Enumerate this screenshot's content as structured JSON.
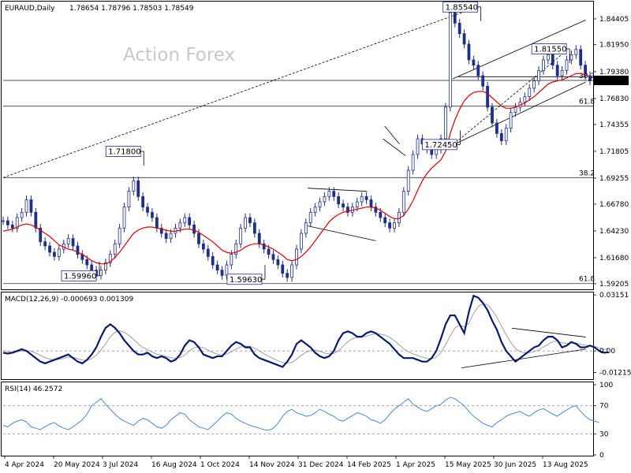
{
  "header": {
    "symbol": "EURAUD,Daily",
    "ohlc": "1.78654 1.78796 1.78503 1.78549"
  },
  "watermark": "Action Forex",
  "colors": {
    "candles": "#1f2f8a",
    "ma": "#e00000",
    "macd": "#0a1a6e",
    "signal": "#a0a0a0",
    "rsi": "#4a8ad8",
    "grid_line": "#888888"
  },
  "chart_data": [
    {
      "type": "candlestick",
      "panel": "price",
      "title": "EURAUD,Daily",
      "x_labels": [
        "4 Apr 2024",
        "20 May 2024",
        "3 Jul 2024",
        "16 Aug 2024",
        "1 Oct 2024",
        "14 Nov 2024",
        "31 Dec 2024",
        "14 Feb 2025",
        "1 Apr 2025",
        "15 May 2025",
        "30 Jun 2025",
        "13 Aug 2025"
      ],
      "y_ticks": [
        "1.84405",
        "1.81950",
        "1.79380",
        "1.76830",
        "1.74355",
        "1.71805",
        "1.69255",
        "1.66780",
        "1.64230",
        "1.61680",
        "1.59205"
      ],
      "ylim": [
        1.5875,
        1.859
      ],
      "last_price": "1.78549",
      "annotations": [
        {
          "text": "1.85540",
          "kind": "high"
        },
        {
          "text": "1.71800",
          "kind": "high"
        },
        {
          "text": "1.59960",
          "kind": "low"
        },
        {
          "text": "1.59630",
          "kind": "low"
        },
        {
          "text": "1.81550",
          "kind": "high"
        },
        {
          "text": "1.72450",
          "kind": "low"
        }
      ],
      "fib_levels": [
        {
          "label": "38.2",
          "value": 1.693
        },
        {
          "label": "61.8",
          "value": 1.5922
        },
        {
          "label": "61.8",
          "value": 1.761
        },
        {
          "label": "38.2",
          "value": 1.7855
        }
      ],
      "series": [
        {
          "name": "price",
          "values": [
            1.652,
            1.648,
            1.645,
            1.655,
            1.66,
            1.672,
            1.66,
            1.645,
            1.632,
            1.628,
            1.622,
            1.618,
            1.625,
            1.63,
            1.635,
            1.628,
            1.62,
            1.615,
            1.61,
            1.605,
            1.6,
            1.605,
            1.612,
            1.62,
            1.63,
            1.645,
            1.665,
            1.68,
            1.69,
            1.675,
            1.665,
            1.66,
            1.655,
            1.645,
            1.64,
            1.635,
            1.64,
            1.645,
            1.65,
            1.655,
            1.648,
            1.64,
            1.63,
            1.625,
            1.618,
            1.61,
            1.605,
            1.6,
            1.61,
            1.62,
            1.63,
            1.645,
            1.655,
            1.65,
            1.64,
            1.63,
            1.625,
            1.62,
            1.615,
            1.61,
            1.602,
            1.598,
            1.61,
            1.625,
            1.64,
            1.65,
            1.66,
            1.665,
            1.67,
            1.675,
            1.68,
            1.675,
            1.668,
            1.665,
            1.66,
            1.665,
            1.67,
            1.675,
            1.672,
            1.665,
            1.66,
            1.655,
            1.65,
            1.645,
            1.65,
            1.66,
            1.68,
            1.7,
            1.715,
            1.73,
            1.725,
            1.72,
            1.715,
            1.72,
            1.73,
            1.76,
            1.85,
            1.84,
            1.83,
            1.82,
            1.805,
            1.8,
            1.79,
            1.78,
            1.76,
            1.745,
            1.735,
            1.728,
            1.74,
            1.755,
            1.76,
            1.765,
            1.77,
            1.778,
            1.785,
            1.795,
            1.805,
            1.81,
            1.8,
            1.79,
            1.795,
            1.805,
            1.81,
            1.815,
            1.8,
            1.79,
            1.785
          ]
        },
        {
          "name": "MA",
          "values": [
            1.642,
            1.643,
            1.644,
            1.646,
            1.648,
            1.649,
            1.648,
            1.646,
            1.643,
            1.64,
            1.637,
            1.633,
            1.629,
            1.627,
            1.625,
            1.624,
            1.622,
            1.62,
            1.617,
            1.614,
            1.612,
            1.611,
            1.611,
            1.613,
            1.617,
            1.622,
            1.628,
            1.634,
            1.64,
            1.643,
            1.645,
            1.646,
            1.646,
            1.645,
            1.644,
            1.643,
            1.642,
            1.642,
            1.643,
            1.644,
            1.644,
            1.643,
            1.641,
            1.638,
            1.635,
            1.632,
            1.628,
            1.624,
            1.622,
            1.621,
            1.622,
            1.624,
            1.627,
            1.629,
            1.63,
            1.63,
            1.629,
            1.627,
            1.625,
            1.622,
            1.619,
            1.615,
            1.614,
            1.615,
            1.618,
            1.622,
            1.627,
            1.633,
            1.639,
            1.645,
            1.651,
            1.655,
            1.658,
            1.66,
            1.661,
            1.662,
            1.663,
            1.664,
            1.665,
            1.665,
            1.664,
            1.662,
            1.659,
            1.656,
            1.654,
            1.654,
            1.657,
            1.663,
            1.671,
            1.681,
            1.69,
            1.697,
            1.702,
            1.706,
            1.71,
            1.718,
            1.735,
            1.748,
            1.758,
            1.766,
            1.771,
            1.774,
            1.775,
            1.775,
            1.773,
            1.769,
            1.765,
            1.761,
            1.759,
            1.759,
            1.76,
            1.762,
            1.764,
            1.767,
            1.77,
            1.774,
            1.778,
            1.782,
            1.784,
            1.785,
            1.786,
            1.788,
            1.79,
            1.792,
            1.792,
            1.791,
            1.789
          ]
        }
      ]
    },
    {
      "type": "line",
      "panel": "macd",
      "title": "MACD(12,26,9) -0.000693 0.001309",
      "y_ticks": [
        "0.03151",
        "0.00",
        "-0.012158"
      ],
      "ylim": [
        -0.015,
        0.032
      ],
      "series": [
        {
          "name": "MACD",
          "values": [
            -0.001,
            -0.0015,
            -0.001,
            0.0,
            0.001,
            0.0,
            -0.002,
            -0.004,
            -0.006,
            -0.007,
            -0.006,
            -0.005,
            -0.004,
            -0.003,
            -0.002,
            -0.004,
            -0.006,
            -0.007,
            -0.005,
            -0.002,
            0.002,
            0.008,
            0.013,
            0.015,
            0.013,
            0.01,
            0.006,
            0.003,
            0.0,
            -0.002,
            -0.002,
            -0.001,
            -0.003,
            -0.004,
            -0.003,
            -0.004,
            -0.006,
            -0.005,
            -0.002,
            0.003,
            0.006,
            0.005,
            0.002,
            -0.002,
            -0.003,
            -0.004,
            -0.003,
            -0.003,
            0.0,
            0.003,
            0.005,
            0.004,
            0.002,
            0.002,
            -0.002,
            -0.004,
            -0.005,
            -0.006,
            -0.007,
            -0.008,
            -0.009,
            -0.006,
            -0.002,
            0.004,
            0.006,
            0.004,
            0.002,
            -0.001,
            -0.003,
            -0.004,
            -0.003,
            0.0,
            0.006,
            0.01,
            0.011,
            0.01,
            0.008,
            0.008,
            0.01,
            0.011,
            0.01,
            0.008,
            0.006,
            0.004,
            0.001,
            -0.002,
            -0.004,
            -0.004,
            -0.004,
            -0.005,
            -0.006,
            -0.006,
            -0.004,
            0.0,
            0.007,
            0.015,
            0.02,
            0.02,
            0.015,
            0.01,
            0.022,
            0.031,
            0.03,
            0.027,
            0.023,
            0.017,
            0.012,
            0.005,
            0.0,
            -0.003,
            -0.006,
            -0.004,
            -0.002,
            0.0,
            0.002,
            0.003,
            0.006,
            0.008,
            0.008,
            0.006,
            0.002,
            0.003,
            0.005,
            0.004,
            0.002,
            0.002,
            0.003,
            0.002,
            0.0,
            -0.001,
            -0.0007
          ]
        },
        {
          "name": "Signal",
          "values": [
            0.0,
            -0.0005,
            -0.0006,
            -0.0004,
            0.0,
            0.0002,
            -0.0002,
            -0.0012,
            -0.0025,
            -0.0038,
            -0.0046,
            -0.005,
            -0.0048,
            -0.0042,
            -0.0035,
            -0.0036,
            -0.0043,
            -0.0052,
            -0.0053,
            -0.0044,
            -0.0025,
            0.0005,
            0.004,
            0.008,
            0.0105,
            0.0113,
            0.0105,
            0.0088,
            0.0065,
            0.004,
            0.002,
            0.0008,
            -0.0006,
            -0.0018,
            -0.0024,
            -0.003,
            -0.0038,
            -0.0042,
            -0.0037,
            -0.0022,
            0.0,
            0.0018,
            0.0025,
            0.0017,
            0.0005,
            -0.0009,
            -0.0018,
            -0.0023,
            -0.0017,
            -0.0005,
            0.0011,
            0.0023,
            0.0027,
            0.0026,
            0.0015,
            0.0,
            -0.0015,
            -0.003,
            -0.0043,
            -0.0055,
            -0.0065,
            -0.0068,
            -0.0064,
            -0.0046,
            -0.0025,
            -0.0008,
            0.0003,
            0.0005,
            -0.0002,
            -0.0012,
            -0.0017,
            -0.0014,
            0.0001,
            0.0027,
            0.0052,
            0.0069,
            0.0076,
            0.0078,
            0.0084,
            0.0091,
            0.0096,
            0.0095,
            0.0089,
            0.0077,
            0.0058,
            0.0035,
            0.0012,
            -0.0005,
            -0.0016,
            -0.0026,
            -0.0035,
            -0.0042,
            -0.0044,
            -0.0035,
            -0.001,
            0.0035,
            0.0085,
            0.013,
            0.0145,
            0.0135,
            0.0155,
            0.021,
            0.025,
            0.0265,
            0.026,
            0.023,
            0.019,
            0.014,
            0.009,
            0.0048,
            0.0012,
            -0.0004,
            -0.0011,
            -0.001,
            -0.0004,
            0.0006,
            0.0022,
            0.0038,
            0.0052,
            0.0056,
            0.0046,
            0.0042,
            0.0045,
            0.0044,
            0.0038,
            0.0032,
            0.003,
            0.0026,
            0.0017,
            0.0009,
            0.0013
          ]
        }
      ]
    },
    {
      "type": "line",
      "panel": "rsi",
      "title": "RSI(14) 46.2572",
      "y_ticks": [
        "100",
        "70",
        "30",
        "0"
      ],
      "ylim": [
        0,
        100
      ],
      "series": [
        {
          "name": "RSI",
          "values": [
            42,
            40,
            45,
            48,
            50,
            47,
            40,
            38,
            36,
            40,
            44,
            46,
            41,
            38,
            36,
            40,
            45,
            50,
            58,
            70,
            75,
            80,
            72,
            65,
            58,
            52,
            48,
            45,
            42,
            48,
            52,
            50,
            45,
            40,
            38,
            42,
            50,
            55,
            60,
            58,
            50,
            45,
            40,
            38,
            36,
            42,
            48,
            55,
            60,
            58,
            52,
            48,
            45,
            42,
            40,
            38,
            36,
            35,
            38,
            45,
            55,
            62,
            65,
            60,
            58,
            55,
            56,
            60,
            65,
            62,
            58,
            55,
            50,
            48,
            52,
            56,
            60,
            58,
            55,
            50,
            48,
            45,
            50,
            58,
            65,
            70,
            75,
            80,
            72,
            68,
            64,
            62,
            66,
            70,
            72,
            78,
            82,
            80,
            75,
            70,
            62,
            55,
            50,
            45,
            42,
            40,
            46,
            50,
            55,
            58,
            60,
            62,
            58,
            55,
            60,
            64,
            66,
            62,
            58,
            55,
            60,
            64,
            68,
            70,
            62,
            55,
            50,
            48,
            46
          ]
        }
      ],
      "levels": [
        70,
        30
      ]
    }
  ]
}
